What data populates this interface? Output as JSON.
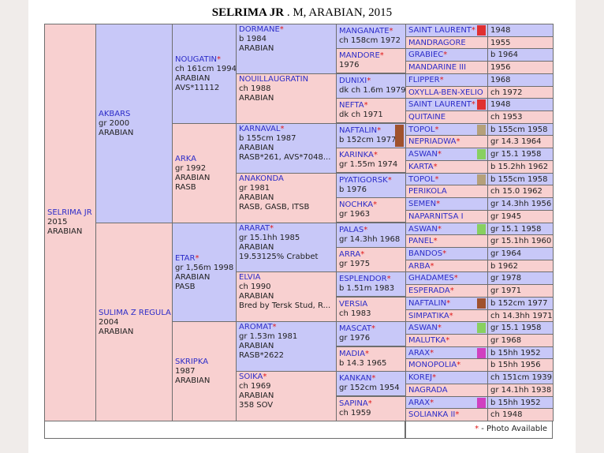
{
  "title": {
    "name": "SELRIMA JR",
    "rest": " . M, ARABIAN, 2015"
  },
  "gen0": {
    "name": "SELRIMA JR",
    "lines": [
      "2015",
      "ARABIAN"
    ]
  },
  "gen1": [
    {
      "name": "AKBARS",
      "lines": [
        "gr 2000",
        "ARABIAN"
      ]
    },
    {
      "name": "SULIMA Z REGULA",
      "lines": [
        "2004",
        "ARABIAN"
      ]
    }
  ],
  "gen2": [
    {
      "name": "NOUGATIN",
      "star": "*",
      "lines": [
        "ch 161cm 1994",
        "ARABIAN",
        "AVS*11112"
      ]
    },
    {
      "name": "ARKA",
      "lines": [
        "gr 1992",
        "ARABIAN",
        "RASB"
      ]
    },
    {
      "name": "ETAR",
      "star": "*",
      "lines": [
        "gr 1,56m 1998",
        "ARABIAN",
        "PASB"
      ]
    },
    {
      "name": "SKRIPKA",
      "lines": [
        "1987",
        "ARABIAN"
      ]
    }
  ],
  "gen3": [
    {
      "name": "DORMANE",
      "star": "*",
      "lines": [
        "b 1984",
        "ARABIAN"
      ]
    },
    {
      "name": "NOUILLAUGRATIN",
      "lines": [
        "ch 1988",
        "ARABIAN"
      ]
    },
    {
      "name": "KARNAVAL",
      "star": "*",
      "lines": [
        "b 155cm 1987",
        "ARABIAN",
        "RASB*261, AVS*7048..."
      ]
    },
    {
      "name": "ANAKONDA",
      "lines": [
        "gr 1981",
        "ARABIAN",
        "RASB, GASB, ITSB"
      ]
    },
    {
      "name": "ARARAT",
      "star": "*",
      "lines": [
        "gr 15.1hh 1985",
        "ARABIAN",
        "19.53125% Crabbet"
      ]
    },
    {
      "name": "ELVIA",
      "lines": [
        "ch 1990",
        "ARABIAN",
        "Bred by Tersk Stud, R..."
      ]
    },
    {
      "name": "AROMAT",
      "star": "*",
      "lines": [
        "gr 1.53m 1981",
        "ARABIAN",
        "RASB*2622"
      ]
    },
    {
      "name": "SOIKA",
      "star": "*",
      "lines": [
        "ch 1969",
        "ARABIAN",
        "358 SOV"
      ]
    }
  ],
  "gen4": [
    {
      "name": "MANGANATE",
      "star": "*",
      "line": "ch 158cm 1972"
    },
    {
      "name": "MANDORE",
      "star": "*",
      "line": "1976"
    },
    {
      "name": "DUNIXI",
      "star": "*",
      "line": "dk ch 1.6m 1979"
    },
    {
      "name": "NEFTA",
      "star": "*",
      "line": "dk ch 1971"
    },
    {
      "name": "NAFTALIN",
      "star": "*",
      "line": "b 152cm 1977"
    },
    {
      "name": "KARINKA",
      "star": "*",
      "line": "gr 1.55m 1974"
    },
    {
      "name": "PYATIGORSK",
      "star": "*",
      "line": "b 1976"
    },
    {
      "name": "NOCHKA",
      "star": "*",
      "line": "gr 1963"
    },
    {
      "name": "PALAS",
      "star": "*",
      "line": "gr 14.3hh 1968"
    },
    {
      "name": "ARRA",
      "star": "*",
      "line": "gr 1975"
    },
    {
      "name": "ESPLENDOR",
      "star": "*",
      "line": "b 1.51m 1983"
    },
    {
      "name": "VERSIA",
      "line": "ch 1983"
    },
    {
      "name": "MASCAT",
      "star": "*",
      "line": "gr 1976"
    },
    {
      "name": "MADIA",
      "star": "*",
      "line": "b 14.3 1965"
    },
    {
      "name": "KANKAN",
      "star": "*",
      "line": "gr 152cm 1954"
    },
    {
      "name": "SAPINA",
      "star": "*",
      "line": "ch 1959"
    }
  ],
  "gen5": [
    {
      "name": "SAINT LAURENT",
      "star": "*",
      "info": "1948"
    },
    {
      "name": "MANDRAGORE",
      "info": "1955"
    },
    {
      "name": "GRABIEC",
      "star": "*",
      "info": "b 1964"
    },
    {
      "name": "MANDARINE III",
      "info": "1956"
    },
    {
      "name": "FLIPPER",
      "star": "*",
      "info": "1968"
    },
    {
      "name": "OXYLLA-BEN-XELIO",
      "info": "ch 1972"
    },
    {
      "name": "SAINT LAURENT",
      "star": "*",
      "info": "1948"
    },
    {
      "name": "QUITAINE",
      "info": "ch 1953"
    },
    {
      "name": "TOPOL",
      "star": "*",
      "info": "b 155cm 1958"
    },
    {
      "name": "NEPRIADWA",
      "star": "*",
      "info": "gr 14.3 1964"
    },
    {
      "name": "ASWAN",
      "star": "*",
      "info": "gr 15.1 1958"
    },
    {
      "name": "KARTA",
      "star": "*",
      "info": "b 15.2hh 1962"
    },
    {
      "name": "TOPOL",
      "star": "*",
      "info": "b 155cm 1958"
    },
    {
      "name": "PERIKOLA",
      "info": "ch 15.0 1962"
    },
    {
      "name": "SEMEN",
      "star": "*",
      "info": "gr 14.3hh 1956"
    },
    {
      "name": "NAPARNITSA I",
      "info": "gr 1945"
    },
    {
      "name": "ASWAN",
      "star": "*",
      "info": "gr 15.1 1958"
    },
    {
      "name": "PANEL",
      "star": "*",
      "info": "gr 15.1hh 1960"
    },
    {
      "name": "BANDOS",
      "star": "*",
      "info": "gr 1964"
    },
    {
      "name": "ARBA",
      "star": "*",
      "info": "b 1962"
    },
    {
      "name": "GHADAMES",
      "star": "*",
      "info": "gr 1978"
    },
    {
      "name": "ESPERADA",
      "star": "*",
      "info": "gr 1971"
    },
    {
      "name": "NAFTALIN",
      "star": "*",
      "info": "b 152cm 1977"
    },
    {
      "name": "SIMPATIKA",
      "star": "*",
      "info": "ch 14.3hh 1971"
    },
    {
      "name": "ASWAN",
      "star": "*",
      "info": "gr 15.1 1958"
    },
    {
      "name": "MALUTKA",
      "star": "*",
      "info": "gr 1968"
    },
    {
      "name": "ARAX",
      "star": "*",
      "info": "b 15hh 1952"
    },
    {
      "name": "MONOPOLIA",
      "star": "*",
      "info": "b 15hh 1956"
    },
    {
      "name": "KOREJ",
      "star": "*",
      "info": "ch 151cm 1939"
    },
    {
      "name": "NAGRADA",
      "info": "gr 14.1hh 1938"
    },
    {
      "name": "ARAX",
      "star": "*",
      "info": "b 15hh 1952"
    },
    {
      "name": "SOLIANKA II",
      "star": "*",
      "info": "ch 1948"
    }
  ],
  "swatches": [
    {
      "g": "5",
      "i": 0,
      "color": "#e03030"
    },
    {
      "g": "5",
      "i": 6,
      "color": "#e03030"
    },
    {
      "g": "4",
      "i": 4,
      "color": "#a0522d"
    },
    {
      "g": "5",
      "i": 8,
      "color": "#b5a07a"
    },
    {
      "g": "5",
      "i": 10,
      "color": "#88d060"
    },
    {
      "g": "5",
      "i": 12,
      "color": "#b5a07a"
    },
    {
      "g": "5",
      "i": 16,
      "color": "#88d060"
    },
    {
      "g": "5",
      "i": 22,
      "color": "#a0522d"
    },
    {
      "g": "5",
      "i": 24,
      "color": "#88d060"
    },
    {
      "g": "5",
      "i": 26,
      "color": "#d040c0"
    },
    {
      "g": "5",
      "i": 30,
      "color": "#d040c0"
    }
  ],
  "footer": {
    "star": "*",
    "note": " - Photo Available"
  },
  "colors": {
    "female": "#f8d0d0",
    "male": "#c8c8f8",
    "name": "#2c2cc8",
    "star": "#e01818"
  }
}
